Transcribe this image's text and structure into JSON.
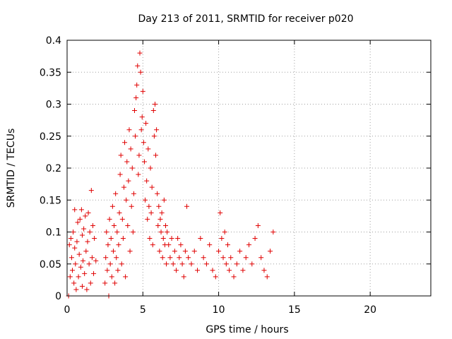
{
  "colors": {
    "series": "#e00000",
    "grid": "#a0a0a0",
    "axis": "#000000",
    "background": "#ffffff"
  },
  "chart_data": {
    "type": "scatter",
    "title": "Day 213 of 2011, SRMTID for receiver p020",
    "xlabel": "GPS time / hours",
    "ylabel": "SRMTID / TECUs",
    "xlim": [
      0,
      24
    ],
    "ylim": [
      0,
      0.4
    ],
    "x_ticks": [
      0,
      5,
      10,
      15,
      20
    ],
    "x_tick_labels": [
      "0",
      "5",
      "10",
      "15",
      "20"
    ],
    "y_ticks": [
      0,
      0.05,
      0.1,
      0.15,
      0.2,
      0.25,
      0.3,
      0.35,
      0.4
    ],
    "y_tick_labels": [
      "0",
      "0.05",
      "0.1",
      "0.15",
      "0.2",
      "0.25",
      "0.3",
      "0.35",
      "0.4"
    ],
    "grid": true,
    "marker": "plus",
    "series": [
      {
        "name": "SRMTID",
        "points": [
          [
            0.1,
            0.0
          ],
          [
            0.15,
            0.08
          ],
          [
            0.2,
            0.03
          ],
          [
            0.25,
            0.09
          ],
          [
            0.3,
            0.06
          ],
          [
            0.35,
            0.04
          ],
          [
            0.4,
            0.1
          ],
          [
            0.45,
            0.02
          ],
          [
            0.5,
            0.135
          ],
          [
            0.5,
            0.075
          ],
          [
            0.55,
            0.05
          ],
          [
            0.6,
            0.01
          ],
          [
            0.65,
            0.085
          ],
          [
            0.7,
            0.115
          ],
          [
            0.75,
            0.03
          ],
          [
            0.8,
            0.065
          ],
          [
            0.85,
            0.12
          ],
          [
            0.9,
            0.045
          ],
          [
            0.95,
            0.135
          ],
          [
            1.0,
            0.095
          ],
          [
            1.0,
            0.015
          ],
          [
            1.05,
            0.055
          ],
          [
            1.1,
            0.105
          ],
          [
            1.15,
            0.035
          ],
          [
            1.2,
            0.125
          ],
          [
            1.25,
            0.07
          ],
          [
            1.3,
            0.01
          ],
          [
            1.35,
            0.085
          ],
          [
            1.4,
            0.13
          ],
          [
            1.45,
            0.05
          ],
          [
            1.5,
            0.1
          ],
          [
            1.55,
            0.02
          ],
          [
            1.6,
            0.165
          ],
          [
            1.65,
            0.06
          ],
          [
            1.7,
            0.11
          ],
          [
            1.75,
            0.035
          ],
          [
            1.8,
            0.09
          ],
          [
            1.9,
            0.055
          ],
          [
            2.5,
            0.02
          ],
          [
            2.55,
            0.06
          ],
          [
            2.6,
            0.1
          ],
          [
            2.65,
            0.04
          ],
          [
            2.7,
            0.08
          ],
          [
            2.75,
            0.0
          ],
          [
            2.8,
            0.12
          ],
          [
            2.85,
            0.05
          ],
          [
            2.9,
            0.09
          ],
          [
            2.95,
            0.03
          ],
          [
            3.0,
            0.14
          ],
          [
            3.05,
            0.07
          ],
          [
            3.1,
            0.11
          ],
          [
            3.15,
            0.02
          ],
          [
            3.2,
            0.16
          ],
          [
            3.25,
            0.06
          ],
          [
            3.3,
            0.1
          ],
          [
            3.35,
            0.04
          ],
          [
            3.4,
            0.08
          ],
          [
            3.45,
            0.13
          ],
          [
            3.5,
            0.19
          ],
          [
            3.55,
            0.22
          ],
          [
            3.6,
            0.05
          ],
          [
            3.65,
            0.12
          ],
          [
            3.7,
            0.09
          ],
          [
            3.75,
            0.17
          ],
          [
            3.8,
            0.24
          ],
          [
            3.85,
            0.03
          ],
          [
            3.9,
            0.15
          ],
          [
            3.95,
            0.21
          ],
          [
            4.0,
            0.11
          ],
          [
            4.05,
            0.18
          ],
          [
            4.1,
            0.26
          ],
          [
            4.15,
            0.07
          ],
          [
            4.2,
            0.23
          ],
          [
            4.25,
            0.14
          ],
          [
            4.3,
            0.2
          ],
          [
            4.35,
            0.1
          ],
          [
            4.4,
            0.16
          ],
          [
            4.45,
            0.29
          ],
          [
            4.5,
            0.25
          ],
          [
            4.55,
            0.31
          ],
          [
            4.6,
            0.33
          ],
          [
            4.65,
            0.36
          ],
          [
            4.7,
            0.19
          ],
          [
            4.75,
            0.22
          ],
          [
            4.8,
            0.38
          ],
          [
            4.85,
            0.35
          ],
          [
            4.9,
            0.26
          ],
          [
            4.95,
            0.28
          ],
          [
            5.0,
            0.32
          ],
          [
            5.05,
            0.24
          ],
          [
            5.1,
            0.21
          ],
          [
            5.15,
            0.15
          ],
          [
            5.2,
            0.27
          ],
          [
            5.25,
            0.18
          ],
          [
            5.3,
            0.12
          ],
          [
            5.35,
            0.23
          ],
          [
            5.4,
            0.14
          ],
          [
            5.45,
            0.09
          ],
          [
            5.5,
            0.2
          ],
          [
            5.55,
            0.13
          ],
          [
            5.6,
            0.17
          ],
          [
            5.65,
            0.08
          ],
          [
            5.7,
            0.29
          ],
          [
            5.75,
            0.25
          ],
          [
            5.8,
            0.3
          ],
          [
            5.85,
            0.22
          ],
          [
            5.9,
            0.26
          ],
          [
            5.95,
            0.16
          ],
          [
            6.0,
            0.11
          ],
          [
            6.05,
            0.14
          ],
          [
            6.1,
            0.07
          ],
          [
            6.15,
            0.12
          ],
          [
            6.2,
            0.1
          ],
          [
            6.25,
            0.13
          ],
          [
            6.3,
            0.06
          ],
          [
            6.35,
            0.09
          ],
          [
            6.4,
            0.15
          ],
          [
            6.45,
            0.08
          ],
          [
            6.5,
            0.11
          ],
          [
            6.55,
            0.05
          ],
          [
            6.6,
            0.1
          ],
          [
            6.7,
            0.08
          ],
          [
            6.8,
            0.06
          ],
          [
            6.9,
            0.09
          ],
          [
            7.0,
            0.05
          ],
          [
            7.1,
            0.07
          ],
          [
            7.2,
            0.04
          ],
          [
            7.3,
            0.09
          ],
          [
            7.4,
            0.06
          ],
          [
            7.5,
            0.08
          ],
          [
            7.6,
            0.05
          ],
          [
            7.7,
            0.03
          ],
          [
            7.8,
            0.07
          ],
          [
            7.9,
            0.14
          ],
          [
            8.0,
            0.06
          ],
          [
            8.2,
            0.05
          ],
          [
            8.4,
            0.07
          ],
          [
            8.6,
            0.04
          ],
          [
            8.8,
            0.09
          ],
          [
            9.0,
            0.06
          ],
          [
            9.2,
            0.05
          ],
          [
            9.4,
            0.08
          ],
          [
            9.6,
            0.04
          ],
          [
            9.8,
            0.03
          ],
          [
            10.0,
            0.07
          ],
          [
            10.1,
            0.13
          ],
          [
            10.2,
            0.09
          ],
          [
            10.3,
            0.06
          ],
          [
            10.4,
            0.1
          ],
          [
            10.5,
            0.05
          ],
          [
            10.6,
            0.08
          ],
          [
            10.7,
            0.04
          ],
          [
            10.8,
            0.06
          ],
          [
            11.0,
            0.03
          ],
          [
            11.2,
            0.05
          ],
          [
            11.4,
            0.07
          ],
          [
            11.6,
            0.04
          ],
          [
            11.8,
            0.06
          ],
          [
            12.0,
            0.08
          ],
          [
            12.2,
            0.05
          ],
          [
            12.4,
            0.09
          ],
          [
            12.6,
            0.11
          ],
          [
            12.8,
            0.06
          ],
          [
            13.0,
            0.04
          ],
          [
            13.2,
            0.03
          ],
          [
            13.4,
            0.07
          ],
          [
            13.6,
            0.1
          ]
        ]
      }
    ]
  }
}
